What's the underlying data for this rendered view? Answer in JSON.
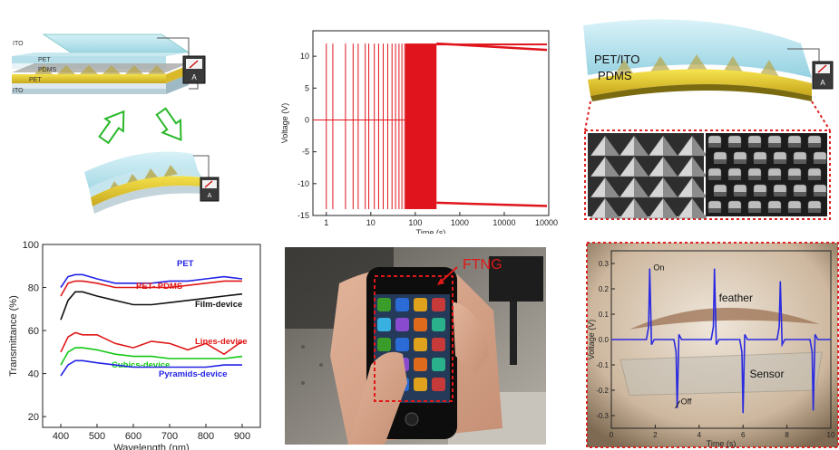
{
  "panel_a": {
    "layer_labels": [
      "ITO",
      "PET",
      "PDMS",
      "PET",
      "ITO"
    ],
    "meter_label": "A"
  },
  "panel_b": {
    "chart_data": {
      "type": "line",
      "xlabel": "Time (s)",
      "ylabel": "Voltage (V)",
      "xscale": "log",
      "xlim": [
        0.5,
        100000
      ],
      "ylim": [
        -15,
        14
      ],
      "x_ticks": [
        "1",
        "10",
        "100",
        "1000",
        "10000",
        "100000"
      ],
      "y_ticks": [
        "-15",
        "-10",
        "-5",
        "0",
        "5",
        "10"
      ],
      "positive_peak_V": 12,
      "negative_peak_V": -14,
      "dense_region_s": [
        60,
        300
      ],
      "plateau_start_V": 12,
      "plateau_end_V": 11,
      "plateau_neg_start_V": -13,
      "plateau_neg_end_V": -13.5,
      "pulse_times_s": [
        1,
        1.4,
        2.7,
        4,
        5.2,
        7.5,
        9,
        12,
        15,
        19,
        24,
        30,
        36,
        43,
        50,
        58
      ],
      "colors": {
        "series": "#e0141c"
      }
    }
  },
  "panel_c": {
    "labels": [
      "PET/ITO",
      "PDMS"
    ],
    "meter_label": "A"
  },
  "panel_d": {
    "chart_data": {
      "type": "line",
      "xlabel": "Wavelength (nm)",
      "ylabel": "Transmittance (%)",
      "xlim": [
        350,
        950
      ],
      "ylim": [
        15,
        100
      ],
      "x_ticks": [
        "400",
        "500",
        "600",
        "700",
        "800",
        "900"
      ],
      "y_ticks": [
        "20",
        "40",
        "60",
        "80",
        "100"
      ],
      "x": [
        400,
        420,
        440,
        460,
        500,
        550,
        600,
        650,
        700,
        750,
        800,
        850,
        900
      ],
      "series": [
        {
          "name": "PET",
          "color": "#2323e6",
          "values": [
            80,
            85,
            86,
            86,
            84,
            82,
            82,
            82,
            83,
            83,
            84,
            85,
            84
          ]
        },
        {
          "name": "PET- PDMS",
          "color": "#e01818",
          "values": [
            76,
            82,
            83,
            83,
            82,
            80,
            80,
            80,
            80,
            81,
            82,
            83,
            83
          ]
        },
        {
          "name": "Film-device",
          "color": "#111111",
          "values": [
            65,
            74,
            78,
            78,
            76,
            74,
            72,
            72,
            73,
            74,
            75,
            76,
            77
          ]
        },
        {
          "name": "Lines-device",
          "color": "#e01818",
          "values": [
            50,
            57,
            59,
            58,
            58,
            54,
            52,
            55,
            54,
            51,
            54,
            49,
            55
          ]
        },
        {
          "name": "Cubics-device",
          "color": "#14c814",
          "values": [
            44,
            50,
            52,
            52,
            51,
            49,
            48,
            48,
            47,
            47,
            47,
            47,
            48
          ]
        },
        {
          "name": "Pyramids-device",
          "color": "#2323e6",
          "values": [
            39,
            44,
            46,
            46,
            45,
            44,
            43,
            43,
            43,
            43,
            43,
            44,
            44
          ]
        }
      ]
    }
  },
  "panel_e": {
    "label": "FTNG"
  },
  "panel_f": {
    "labels": {
      "on": "On",
      "off": "Off",
      "feather": "feather",
      "sensor": "Sensor"
    },
    "chart_data": {
      "type": "line",
      "xlabel": "Time (s)",
      "ylabel": "Voltage (V)",
      "xlim": [
        0,
        10
      ],
      "ylim": [
        -0.35,
        0.35
      ],
      "x_ticks": [
        "0",
        "2",
        "4",
        "6",
        "8",
        "10"
      ],
      "y_ticks": [
        "-0.3",
        "-0.2",
        "-0.1",
        "0.0",
        "0.1",
        "0.2",
        "0.3"
      ],
      "spikes": [
        {
          "t_on": 1.75,
          "v_on": 0.28,
          "t_off": 3.0,
          "v_off": -0.27
        },
        {
          "t_on": 4.7,
          "v_on": 0.28,
          "t_off": 6.0,
          "v_off": -0.29
        },
        {
          "t_on": 7.7,
          "v_on": 0.23,
          "t_off": 9.2,
          "v_off": -0.28
        }
      ],
      "colors": {
        "series": "#2a2ae0"
      }
    }
  }
}
